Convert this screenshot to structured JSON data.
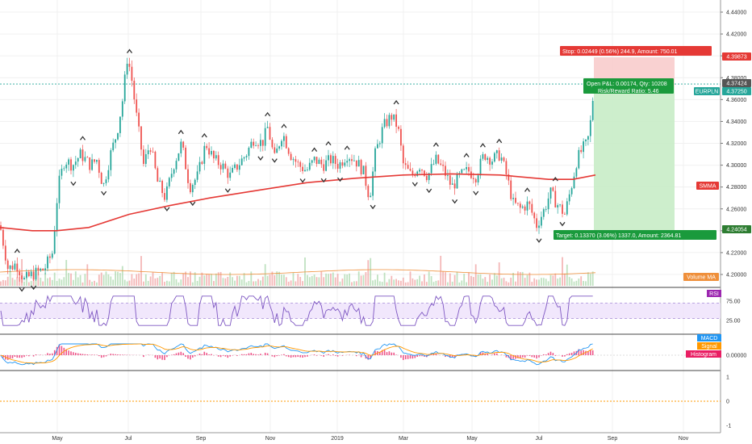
{
  "chart_data": {
    "type": "candlestick",
    "symbol_label": "EURPLN",
    "x_labels": [
      "May",
      "Jul",
      "Sep",
      "Nov",
      "2019",
      "Mar",
      "May",
      "Jul",
      "Sep",
      "Nov"
    ],
    "price_axis": {
      "ticks": [
        "4.44000",
        "4.42000",
        "4.40000",
        "4.38000",
        "4.36000",
        "4.34000",
        "4.32000",
        "4.30000",
        "4.28000",
        "4.26000",
        "4.24000",
        "4.22000",
        "4.20000"
      ],
      "tags": [
        {
          "id": "stop_level",
          "text": "4.39873",
          "color": "#e53935"
        },
        {
          "id": "last_price",
          "text": "4.37424",
          "color": "#555555"
        },
        {
          "id": "current",
          "text": "4.37250",
          "color": "#26a69a"
        },
        {
          "id": "smma",
          "text": "SMMA",
          "color": "#e53935"
        },
        {
          "id": "target_level",
          "text": "4.24054",
          "color": "#2e7d32"
        },
        {
          "id": "volume_ma",
          "text": "Volume MA",
          "color": "#ef8f3a"
        }
      ]
    },
    "rsi": {
      "label": "RSI",
      "ticks": [
        "75.00",
        "25.00"
      ],
      "upper": 70,
      "lower": 30
    },
    "macd": {
      "labels": [
        "MACD",
        "Signal",
        "Histogram"
      ],
      "ticks": [
        "0.00000"
      ]
    },
    "lower_pane": {
      "ticks": [
        "1",
        "0",
        "-1"
      ]
    },
    "position": {
      "stop_text": "Stop: 0.02449 (0.56%) 244.9, Amount: 750.01",
      "pnl_text": "Open P&L: 0.00174, Qty: 10208",
      "rr_text": "Risk/Reward Ratio: 5.46",
      "target_text": "Target: 0.13370 (3.06%) 1337.0, Amount: 2364.81"
    },
    "anchors": [
      {
        "x": 0,
        "y": 4.245
      },
      {
        "x": 10,
        "y": 4.205
      },
      {
        "x": 20,
        "y": 4.21
      },
      {
        "x": 30,
        "y": 4.195
      },
      {
        "x": 40,
        "y": 4.2
      },
      {
        "x": 55,
        "y": 4.205
      },
      {
        "x": 65,
        "y": 4.22
      },
      {
        "x": 72,
        "y": 4.28
      },
      {
        "x": 80,
        "y": 4.305
      },
      {
        "x": 90,
        "y": 4.3
      },
      {
        "x": 100,
        "y": 4.31
      },
      {
        "x": 112,
        "y": 4.3
      },
      {
        "x": 120,
        "y": 4.305
      },
      {
        "x": 128,
        "y": 4.28
      },
      {
        "x": 137,
        "y": 4.31
      },
      {
        "x": 145,
        "y": 4.33
      },
      {
        "x": 152,
        "y": 4.36
      },
      {
        "x": 158,
        "y": 4.4
      },
      {
        "x": 163,
        "y": 4.38
      },
      {
        "x": 170,
        "y": 4.34
      },
      {
        "x": 178,
        "y": 4.3
      },
      {
        "x": 186,
        "y": 4.32
      },
      {
        "x": 195,
        "y": 4.285
      },
      {
        "x": 205,
        "y": 4.27
      },
      {
        "x": 215,
        "y": 4.3
      },
      {
        "x": 225,
        "y": 4.32
      },
      {
        "x": 235,
        "y": 4.28
      },
      {
        "x": 245,
        "y": 4.29
      },
      {
        "x": 255,
        "y": 4.32
      },
      {
        "x": 265,
        "y": 4.305
      },
      {
        "x": 275,
        "y": 4.3
      },
      {
        "x": 285,
        "y": 4.29
      },
      {
        "x": 295,
        "y": 4.3
      },
      {
        "x": 305,
        "y": 4.31
      },
      {
        "x": 315,
        "y": 4.325
      },
      {
        "x": 325,
        "y": 4.32
      },
      {
        "x": 332,
        "y": 4.335
      },
      {
        "x": 340,
        "y": 4.305
      },
      {
        "x": 350,
        "y": 4.33
      },
      {
        "x": 360,
        "y": 4.31
      },
      {
        "x": 370,
        "y": 4.3
      },
      {
        "x": 380,
        "y": 4.295
      },
      {
        "x": 390,
        "y": 4.305
      },
      {
        "x": 400,
        "y": 4.3
      },
      {
        "x": 410,
        "y": 4.305
      },
      {
        "x": 420,
        "y": 4.3
      },
      {
        "x": 430,
        "y": 4.31
      },
      {
        "x": 440,
        "y": 4.305
      },
      {
        "x": 450,
        "y": 4.295
      },
      {
        "x": 458,
        "y": 4.27
      },
      {
        "x": 465,
        "y": 4.31
      },
      {
        "x": 475,
        "y": 4.335
      },
      {
        "x": 485,
        "y": 4.345
      },
      {
        "x": 493,
        "y": 4.335
      },
      {
        "x": 500,
        "y": 4.3
      },
      {
        "x": 510,
        "y": 4.29
      },
      {
        "x": 520,
        "y": 4.3
      },
      {
        "x": 530,
        "y": 4.29
      },
      {
        "x": 540,
        "y": 4.305
      },
      {
        "x": 550,
        "y": 4.295
      },
      {
        "x": 560,
        "y": 4.28
      },
      {
        "x": 570,
        "y": 4.29
      },
      {
        "x": 580,
        "y": 4.295
      },
      {
        "x": 590,
        "y": 4.29
      },
      {
        "x": 600,
        "y": 4.31
      },
      {
        "x": 610,
        "y": 4.305
      },
      {
        "x": 620,
        "y": 4.31
      },
      {
        "x": 628,
        "y": 4.29
      },
      {
        "x": 636,
        "y": 4.265
      },
      {
        "x": 645,
        "y": 4.26
      },
      {
        "x": 655,
        "y": 4.265
      },
      {
        "x": 665,
        "y": 4.245
      },
      {
        "x": 675,
        "y": 4.26
      },
      {
        "x": 682,
        "y": 4.275
      },
      {
        "x": 690,
        "y": 4.265
      },
      {
        "x": 700,
        "y": 4.255
      },
      {
        "x": 708,
        "y": 4.28
      },
      {
        "x": 715,
        "y": 4.305
      },
      {
        "x": 722,
        "y": 4.315
      },
      {
        "x": 728,
        "y": 4.32
      },
      {
        "x": 733,
        "y": 4.345
      },
      {
        "x": 736,
        "y": 4.3725
      }
    ],
    "smma_anchors": [
      {
        "x": 0,
        "y": 4.243
      },
      {
        "x": 40,
        "y": 4.24
      },
      {
        "x": 70,
        "y": 4.24
      },
      {
        "x": 110,
        "y": 4.243
      },
      {
        "x": 160,
        "y": 4.255
      },
      {
        "x": 210,
        "y": 4.263
      },
      {
        "x": 260,
        "y": 4.27
      },
      {
        "x": 320,
        "y": 4.277
      },
      {
        "x": 380,
        "y": 4.284
      },
      {
        "x": 440,
        "y": 4.288
      },
      {
        "x": 500,
        "y": 4.291
      },
      {
        "x": 560,
        "y": 4.292
      },
      {
        "x": 620,
        "y": 4.291
      },
      {
        "x": 680,
        "y": 4.287
      },
      {
        "x": 710,
        "y": 4.287
      },
      {
        "x": 738,
        "y": 4.291
      }
    ]
  }
}
